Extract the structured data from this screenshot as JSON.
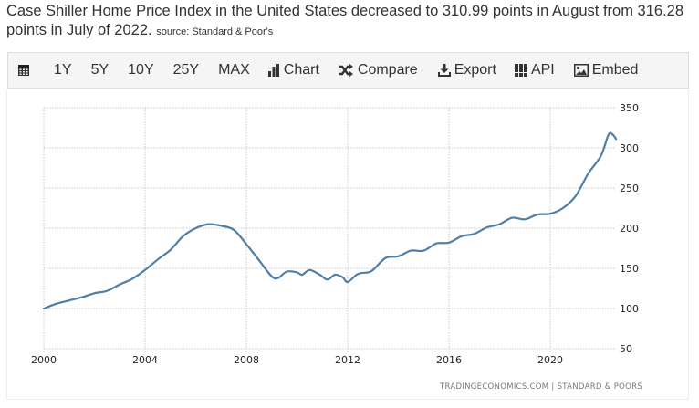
{
  "headline": {
    "text": "Case Shiller Home Price Index in the United States decreased to 310.99 points in August from 316.28 points in July of 2022.",
    "source": "source: Standard & Poor's"
  },
  "toolbar": {
    "items": [
      {
        "id": "calendar",
        "label": "",
        "icon": "calendar-icon"
      },
      {
        "id": "1y",
        "label": "1Y"
      },
      {
        "id": "5y",
        "label": "5Y"
      },
      {
        "id": "10y",
        "label": "10Y"
      },
      {
        "id": "25y",
        "label": "25Y"
      },
      {
        "id": "max",
        "label": "MAX"
      },
      {
        "id": "chart",
        "label": "Chart",
        "icon": "bar-chart-icon"
      },
      {
        "id": "compare",
        "label": "Compare",
        "icon": "shuffle-icon"
      },
      {
        "id": "export",
        "label": "Export",
        "icon": "download-icon"
      },
      {
        "id": "api",
        "label": "API",
        "icon": "grid-icon"
      },
      {
        "id": "embed",
        "label": "Embed",
        "icon": "image-icon"
      }
    ]
  },
  "credit": "TRADINGECONOMICS.COM  |  STANDARD & POORS",
  "colors": {
    "line": "#4f7ea8",
    "grid": "#c8c8c8",
    "toolbar_bg": "#f5f5f5"
  },
  "chart_data": {
    "type": "line",
    "title": "Case Shiller Home Price Index - United States",
    "xlabel": "",
    "ylabel": "",
    "xlim": [
      2000,
      2023.3
    ],
    "ylim": [
      50,
      350
    ],
    "x_ticks": [
      2000,
      2004,
      2008,
      2012,
      2016,
      2020
    ],
    "y_ticks": [
      50,
      100,
      150,
      200,
      250,
      300,
      350
    ],
    "grid": true,
    "y_axis_side": "right",
    "legend": "none",
    "series": [
      {
        "name": "Case Shiller Home Price Index",
        "x": [
          2000,
          2000.5,
          2001,
          2001.5,
          2002,
          2002.5,
          2003,
          2003.5,
          2004,
          2004.5,
          2005,
          2005.5,
          2006,
          2006.5,
          2007,
          2007.5,
          2008,
          2008.5,
          2009,
          2009.25,
          2009.6,
          2010,
          2010.2,
          2010.5,
          2010.9,
          2011.2,
          2011.5,
          2011.8,
          2012,
          2012.4,
          2012.8,
          2013,
          2013.5,
          2014,
          2014.5,
          2015,
          2015.5,
          2016,
          2016.5,
          2017,
          2017.5,
          2018,
          2018.5,
          2019,
          2019.5,
          2020,
          2020.5,
          2021,
          2021.5,
          2022,
          2022.3,
          2022.45,
          2022.6
        ],
        "values": [
          100,
          106,
          110,
          114,
          119,
          122,
          130,
          137,
          148,
          161,
          173,
          190,
          200,
          205,
          203,
          198,
          180,
          160,
          140,
          138,
          146,
          145,
          142,
          148,
          142,
          136,
          142,
          139,
          133,
          143,
          145,
          148,
          163,
          165,
          172,
          172,
          181,
          182,
          190,
          193,
          201,
          205,
          213,
          211,
          217,
          218,
          225,
          240,
          268,
          290,
          316.3,
          317,
          311
        ]
      }
    ]
  }
}
